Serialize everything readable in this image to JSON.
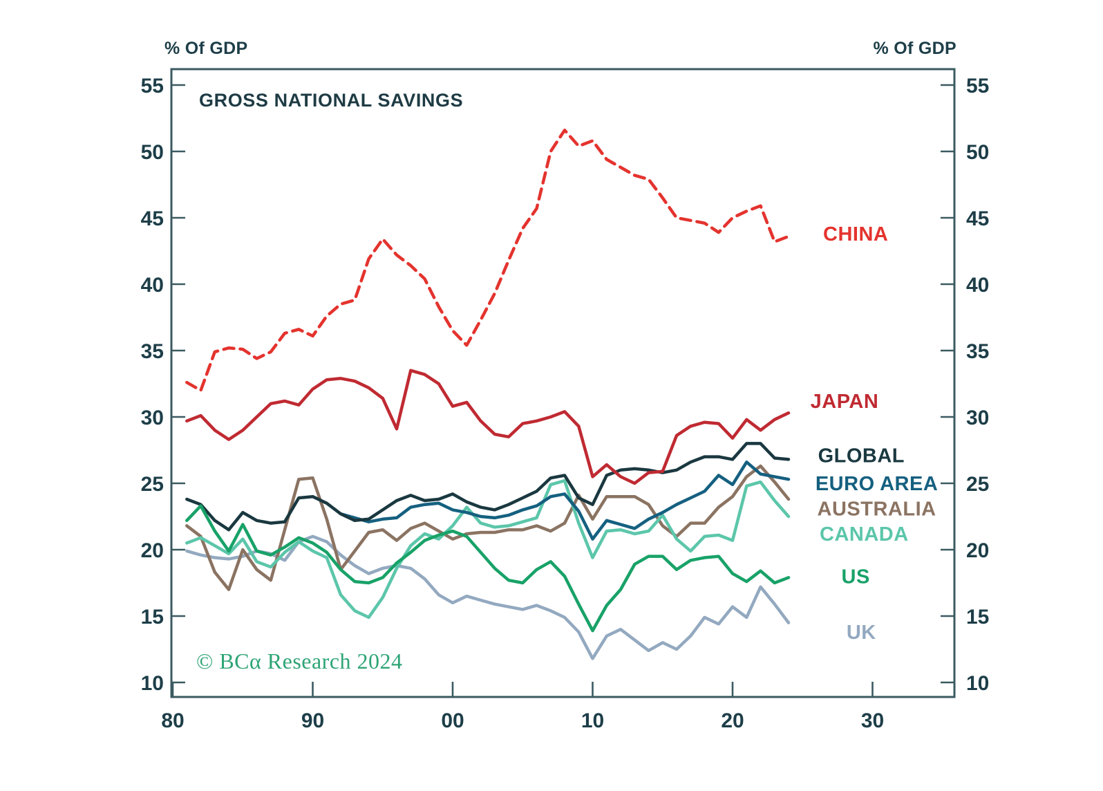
{
  "chart": {
    "title": "GROSS NATIONAL SAVINGS",
    "y_axis_label_left": "% Of GDP",
    "y_axis_label_right": "% Of GDP",
    "watermark": "© BCα Research 2024"
  },
  "colors": {
    "axis": "#3b5a61",
    "tick_label": "#1d3e48",
    "title": "#1e3b44",
    "watermark": "#2ea475",
    "background": "#ffffff"
  },
  "chart_data": {
    "type": "line",
    "title": "GROSS NATIONAL SAVINGS",
    "ylabel": "% Of GDP",
    "grid": false,
    "legend_position": "inline-right",
    "ylim": [
      10,
      55
    ],
    "xlim": [
      1980,
      2034.6
    ],
    "y_ticks": [
      10,
      15,
      20,
      25,
      30,
      35,
      40,
      45,
      50,
      55
    ],
    "x_ticks": [
      {
        "year": 1980,
        "label": "80"
      },
      {
        "year": 1990,
        "label": "90"
      },
      {
        "year": 2000,
        "label": "00"
      },
      {
        "year": 2010,
        "label": "10"
      },
      {
        "year": 2020,
        "label": "20"
      },
      {
        "year": 2030,
        "label": "30"
      }
    ],
    "years": [
      1981,
      1982,
      1983,
      1984,
      1985,
      1986,
      1987,
      1988,
      1989,
      1990,
      1991,
      1992,
      1993,
      1994,
      1995,
      1996,
      1997,
      1998,
      1999,
      2000,
      2001,
      2002,
      2003,
      2004,
      2005,
      2006,
      2007,
      2008,
      2009,
      2010,
      2011,
      2012,
      2013,
      2014,
      2015,
      2016,
      2017,
      2018,
      2019,
      2020,
      2021,
      2022,
      2023,
      2024
    ],
    "series": [
      {
        "name": "china",
        "label": "CHINA",
        "color": "#e4332e",
        "dashed": true,
        "label_at": {
          "year": 2028.8,
          "value": 43.8
        },
        "values": [
          32.6,
          32.0,
          34.9,
          35.2,
          35.1,
          34.4,
          34.9,
          36.3,
          36.6,
          36.1,
          37.6,
          38.5,
          38.8,
          41.9,
          43.4,
          42.2,
          41.4,
          40.4,
          38.3,
          36.5,
          35.4,
          37.3,
          39.3,
          41.8,
          44.2,
          45.7,
          50.0,
          51.6,
          50.4,
          50.8,
          49.4,
          48.8,
          48.2,
          47.9,
          46.5,
          45.0,
          44.8,
          44.6,
          43.9,
          45.0,
          45.5,
          45.9,
          43.2,
          43.6
        ]
      },
      {
        "name": "japan",
        "label": "JAPAN",
        "color": "#c02a32",
        "dashed": false,
        "label_at": {
          "year": 2028.0,
          "value": 31.2
        },
        "values": [
          29.7,
          30.1,
          29.0,
          28.3,
          29.0,
          30.0,
          31.0,
          31.2,
          30.9,
          32.1,
          32.8,
          32.9,
          32.7,
          32.2,
          31.4,
          29.1,
          33.5,
          33.2,
          32.5,
          30.8,
          31.1,
          29.7,
          28.7,
          28.5,
          29.5,
          29.7,
          30.0,
          30.4,
          29.3,
          25.5,
          26.4,
          25.5,
          25.0,
          25.8,
          25.9,
          28.6,
          29.3,
          29.6,
          29.5,
          28.4,
          29.8,
          29.0,
          29.8,
          30.3
        ]
      },
      {
        "name": "global",
        "label": "GLOBAL",
        "color": "#1a3840",
        "dashed": false,
        "label_at": {
          "year": 2029.2,
          "value": 27.1
        },
        "values": [
          23.8,
          23.4,
          22.2,
          21.5,
          22.8,
          22.2,
          22.0,
          22.1,
          23.9,
          24.0,
          23.5,
          22.7,
          22.2,
          22.3,
          23.0,
          23.7,
          24.1,
          23.7,
          23.8,
          24.2,
          23.6,
          23.2,
          23.0,
          23.4,
          23.9,
          24.4,
          25.4,
          25.6,
          23.9,
          23.4,
          25.6,
          26.0,
          26.1,
          26.0,
          25.8,
          26.0,
          26.6,
          27.0,
          27.0,
          26.8,
          28.0,
          28.0,
          26.9,
          26.8
        ]
      },
      {
        "name": "euro-area",
        "label": "EURO AREA",
        "color": "#156080",
        "dashed": false,
        "label_at": {
          "year": 2030.3,
          "value": 25.0
        },
        "values": [
          null,
          null,
          null,
          null,
          null,
          null,
          null,
          null,
          null,
          null,
          null,
          22.7,
          22.4,
          22.1,
          22.3,
          22.4,
          23.2,
          23.4,
          23.5,
          23.0,
          22.8,
          22.5,
          22.4,
          22.6,
          23.0,
          23.3,
          24.0,
          24.2,
          22.9,
          20.8,
          22.2,
          21.9,
          21.6,
          22.3,
          22.8,
          23.4,
          23.9,
          24.4,
          25.6,
          24.9,
          26.6,
          25.7,
          25.5,
          25.3
        ]
      },
      {
        "name": "australia",
        "label": "AUSTRALIA",
        "color": "#8b7362",
        "dashed": false,
        "label_at": {
          "year": 2030.3,
          "value": 23.1
        },
        "values": [
          21.8,
          21.0,
          18.3,
          17.0,
          20.0,
          18.5,
          17.7,
          21.5,
          25.3,
          25.4,
          22.3,
          18.5,
          19.9,
          21.3,
          21.5,
          20.7,
          21.6,
          22.0,
          21.4,
          20.8,
          21.2,
          21.3,
          21.3,
          21.5,
          21.5,
          21.8,
          21.4,
          22.0,
          24.1,
          22.3,
          24.0,
          24.0,
          24.0,
          23.4,
          21.8,
          21.0,
          22.0,
          22.0,
          23.2,
          24.0,
          25.5,
          26.3,
          25.1,
          23.8
        ]
      },
      {
        "name": "canada",
        "label": "CANADA",
        "color": "#5cc6aa",
        "dashed": false,
        "label_at": {
          "year": 2029.4,
          "value": 21.2
        },
        "values": [
          20.5,
          20.9,
          20.3,
          19.7,
          20.8,
          19.1,
          18.7,
          19.8,
          20.6,
          19.9,
          19.4,
          16.6,
          15.4,
          14.9,
          16.4,
          18.6,
          20.3,
          21.2,
          20.8,
          21.8,
          23.2,
          22.0,
          21.7,
          21.8,
          22.1,
          22.4,
          24.9,
          25.2,
          22.0,
          19.4,
          21.4,
          21.5,
          21.2,
          21.4,
          22.6,
          20.8,
          19.9,
          21.0,
          21.1,
          20.7,
          24.8,
          25.1,
          23.7,
          22.5
        ]
      },
      {
        "name": "us",
        "label": "US",
        "color": "#18a268",
        "dashed": false,
        "label_at": {
          "year": 2028.8,
          "value": 18.0
        },
        "values": [
          22.2,
          23.3,
          21.4,
          19.9,
          21.9,
          19.9,
          19.6,
          20.2,
          20.9,
          20.5,
          19.8,
          18.5,
          17.6,
          17.5,
          17.9,
          19.0,
          19.8,
          20.7,
          21.1,
          21.4,
          21.0,
          19.8,
          18.6,
          17.7,
          17.5,
          18.5,
          19.1,
          18.0,
          15.9,
          13.9,
          15.8,
          17.0,
          18.9,
          19.5,
          19.5,
          18.5,
          19.2,
          19.4,
          19.5,
          18.2,
          17.6,
          18.4,
          17.5,
          17.9
        ]
      },
      {
        "name": "uk",
        "label": "UK",
        "color": "#93a9c0",
        "dashed": false,
        "label_at": {
          "year": 2029.2,
          "value": 13.8
        },
        "values": [
          19.9,
          19.6,
          19.4,
          19.3,
          19.5,
          19.9,
          19.7,
          19.2,
          20.6,
          21.0,
          20.6,
          19.6,
          18.8,
          18.2,
          18.6,
          18.8,
          18.6,
          17.8,
          16.6,
          16.0,
          16.5,
          16.2,
          15.9,
          15.7,
          15.5,
          15.8,
          15.4,
          14.9,
          13.8,
          11.8,
          13.5,
          14.0,
          13.2,
          12.4,
          13.0,
          12.5,
          13.5,
          14.9,
          14.4,
          15.7,
          14.9,
          17.2,
          15.9,
          14.5
        ]
      }
    ]
  }
}
